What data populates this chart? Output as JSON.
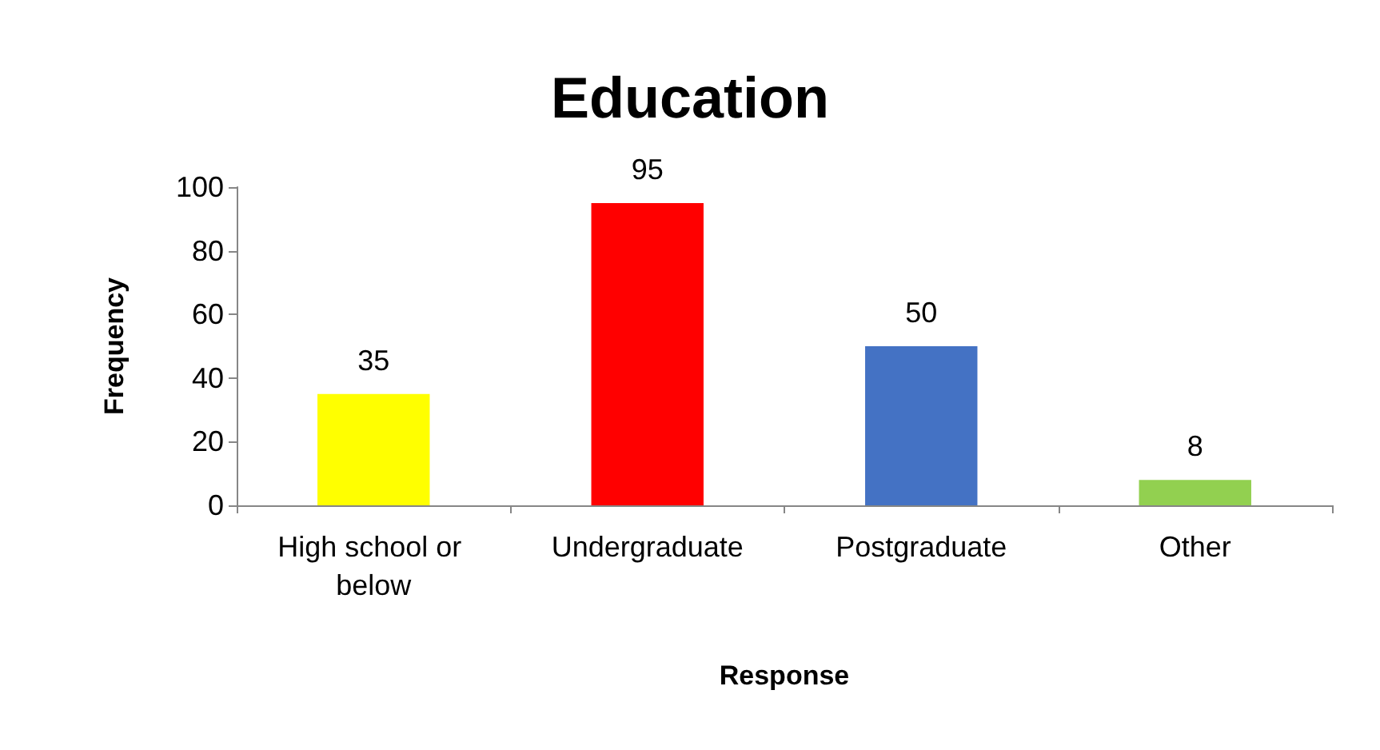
{
  "chart_data": {
    "type": "bar",
    "title": "Education",
    "xlabel": "Response",
    "ylabel": "Frequency",
    "categories": [
      "High school or below",
      "Undergraduate",
      "Postgraduate",
      "Other"
    ],
    "values": [
      35,
      95,
      50,
      8
    ],
    "colors": [
      "#ffff00",
      "#ff0000",
      "#4472c4",
      "#92d050"
    ],
    "ylim": [
      0,
      100
    ],
    "yticks": [
      0,
      20,
      40,
      60,
      80,
      100
    ],
    "data_labels": true,
    "grid": false
  }
}
